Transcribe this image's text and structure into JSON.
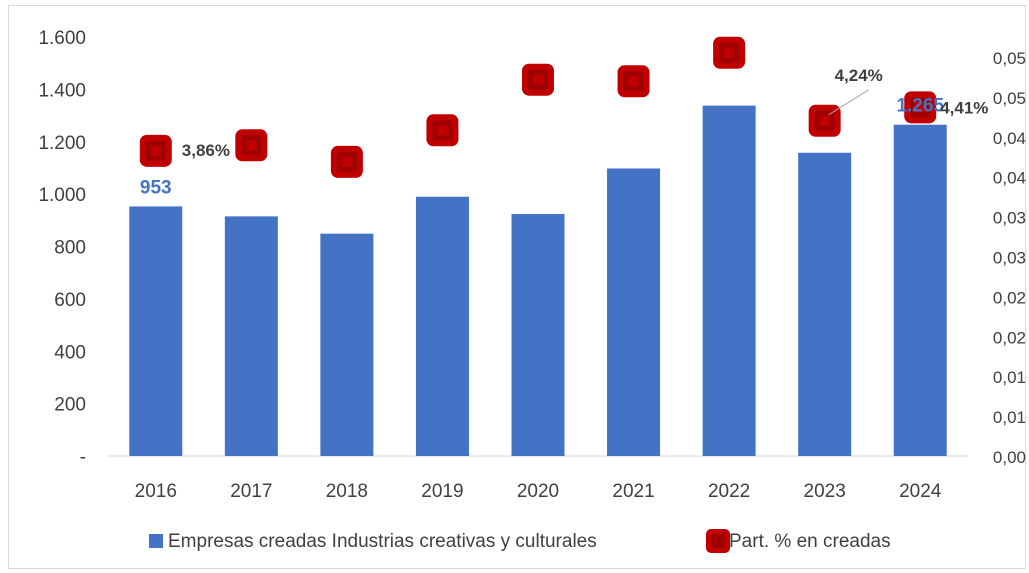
{
  "chart_data": {
    "type": "bar",
    "categories": [
      "2016",
      "2017",
      "2018",
      "2019",
      "2020",
      "2021",
      "2022",
      "2023",
      "2024"
    ],
    "series": [
      {
        "name": "Empresas creadas Industrias creativas y culturales",
        "type": "bar",
        "axis": "left",
        "color": "#4472c4",
        "values": [
          953,
          915,
          849,
          990,
          924,
          1098,
          1338,
          1158,
          1265
        ]
      },
      {
        "name": "Part. % en creadas",
        "type": "marker",
        "axis": "right",
        "color": "#c00000",
        "values": [
          0.0386,
          0.0393,
          0.0372,
          0.0412,
          0.0476,
          0.0474,
          0.051,
          0.0424,
          0.0441
        ]
      }
    ],
    "y_left": {
      "ylim": [
        0,
        1600
      ],
      "ticks": [
        0,
        200,
        400,
        600,
        800,
        1000,
        1200,
        1400,
        1600
      ],
      "tick_labels": [
        "-",
        "200",
        "400",
        "600",
        "800",
        "1.000",
        "1.200",
        "1.400",
        "1.600"
      ]
    },
    "y_right": {
      "ylim": [
        0.0,
        0.053
      ],
      "tick_labels": [
        "0,00",
        "0,01",
        "0,01",
        "0,02",
        "0,02",
        "0,03",
        "0,03",
        "0,04",
        "0,04",
        "0,05",
        "0,05"
      ]
    },
    "bar_data_labels": [
      {
        "index": 0,
        "text": "953",
        "color": "#4472c4"
      },
      {
        "index": 8,
        "text": "1.265",
        "color": "#4472c4"
      }
    ],
    "marker_data_labels": [
      {
        "index": 0,
        "text": "3,86%"
      },
      {
        "index": 7,
        "text": "4,24%"
      },
      {
        "index": 8,
        "text": "4,41%"
      }
    ],
    "legend": {
      "placement": "bottom",
      "items": [
        {
          "label": "Empresas creadas Industrias creativas y culturales",
          "symbol": "bar"
        },
        {
          "label": "Part. % en creadas",
          "symbol": "marker"
        }
      ]
    },
    "grid": false
  }
}
